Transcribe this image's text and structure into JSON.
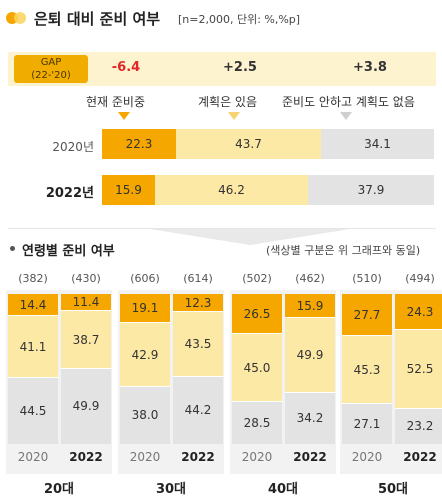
{
  "header": {
    "title": "은퇴 대비 준비 여부",
    "note": "[n=2,000, 단위: %,%p]"
  },
  "colors": {
    "prepared": "#f5a700",
    "planned": "#fde9a6",
    "none": "#e3e3e3",
    "gap_negative": "#e12727",
    "gap_tag": "#f0ad00"
  },
  "gap": {
    "tag_line1": "GAP",
    "tag_line2": "(22-'20)",
    "values": [
      "-6.4",
      "+2.5",
      "+3.8"
    ]
  },
  "legend": {
    "prepared": "현재 준비중",
    "planned": "계획은 있음",
    "none": "준비도 안하고 계획도 없음"
  },
  "overall_years": [
    "2020년",
    "2022년"
  ],
  "section2": {
    "title": "연령별 준비 여부",
    "note": "(색상별 구분은 위 그래프와 동일)"
  },
  "chart_data": [
    {
      "type": "bar",
      "orientation": "horizontal",
      "stacked": true,
      "categories": [
        "2020년",
        "2022년"
      ],
      "series": [
        {
          "name": "현재 준비중",
          "values": [
            22.3,
            15.9
          ]
        },
        {
          "name": "계획은 있음",
          "values": [
            43.7,
            46.2
          ]
        },
        {
          "name": "준비도 안하고 계획도 없음",
          "values": [
            34.1,
            37.9
          ]
        }
      ],
      "gap": [
        -6.4,
        2.5,
        3.8
      ]
    },
    {
      "type": "bar",
      "orientation": "vertical",
      "stacked": true,
      "groups": [
        "20대",
        "30대",
        "40대",
        "50대"
      ],
      "years": [
        "2020",
        "2022"
      ],
      "bars": [
        {
          "group": "20대",
          "year": "2020",
          "n": "(382)",
          "prepared": 14.4,
          "planned": 41.1,
          "none": 44.5
        },
        {
          "group": "20대",
          "year": "2022",
          "n": "(430)",
          "prepared": 11.4,
          "planned": 38.7,
          "none": 49.9
        },
        {
          "group": "30대",
          "year": "2020",
          "n": "(606)",
          "prepared": 19.1,
          "planned": 42.9,
          "none": 38.0
        },
        {
          "group": "30대",
          "year": "2022",
          "n": "(614)",
          "prepared": 12.3,
          "planned": 43.5,
          "none": 44.2
        },
        {
          "group": "40대",
          "year": "2020",
          "n": "(502)",
          "prepared": 26.5,
          "planned": 45.0,
          "none": 28.5
        },
        {
          "group": "40대",
          "year": "2022",
          "n": "(462)",
          "prepared": 15.9,
          "planned": 49.9,
          "none": 34.2
        },
        {
          "group": "50대",
          "year": "2020",
          "n": "(510)",
          "prepared": 27.7,
          "planned": 45.3,
          "none": 27.1
        },
        {
          "group": "50대",
          "year": "2022",
          "n": "(494)",
          "prepared": 24.3,
          "planned": 52.5,
          "none": 23.2
        }
      ]
    }
  ]
}
